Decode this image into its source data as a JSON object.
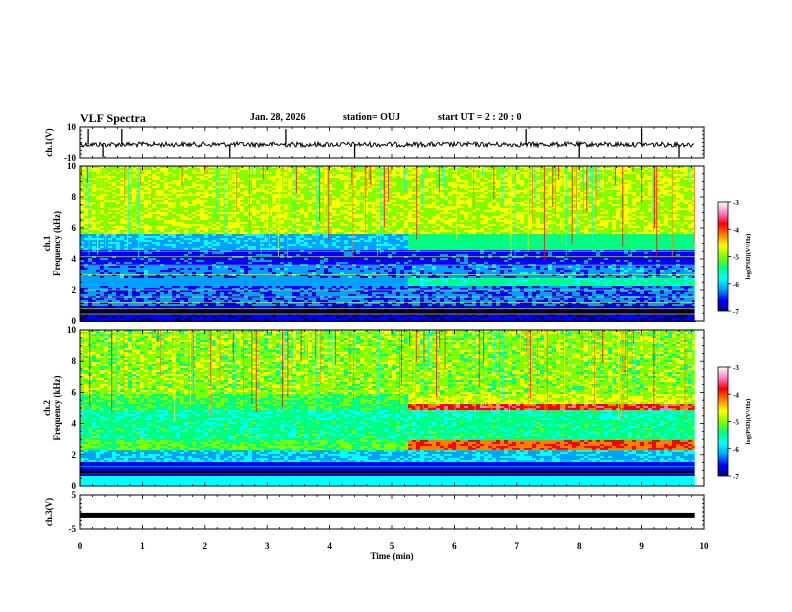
{
  "header": {
    "title": "VLF Spectra",
    "date": "Jan. 28, 2026",
    "station": "station= OUJ",
    "start": "start  UT =  2 : 20 : 0"
  },
  "chart_data": {
    "type": "heatmap",
    "x_axis": {
      "label": "Time (min)",
      "range": [
        0,
        10
      ],
      "ticks": [
        "0",
        "1",
        "2",
        "3",
        "4",
        "5",
        "6",
        "7",
        "8",
        "9",
        "10"
      ]
    },
    "panels": [
      {
        "id": "ch1-waveform",
        "type": "line",
        "ylabel": "ch.1(V)",
        "ylim": [
          -10,
          10
        ],
        "ytick_labels": [
          "10",
          "-10"
        ],
        "data_end_min": 9.85
      },
      {
        "id": "ch1-spectrogram",
        "type": "heatmap",
        "ylabel_top": "ch.1",
        "ylabel": "Frequency (kHz)",
        "ylim": [
          0,
          10
        ],
        "ytick_labels": [
          "0",
          "2",
          "4",
          "6",
          "8",
          "10"
        ],
        "data_end_min": 9.85,
        "features": [
          {
            "time_from_min": 0,
            "time_to_min": 5.2,
            "green_above_khz": 5.5,
            "dark_band_khz": [
              3.6,
              4.5
            ]
          },
          {
            "time_from_min": 5.2,
            "time_to_min": 9.85,
            "cyan_band_khz": [
              4.7,
              5.6
            ],
            "cyan_band2_khz": [
              2.4,
              2.8
            ]
          }
        ]
      },
      {
        "id": "ch2-spectrogram",
        "type": "heatmap",
        "ylabel_top": "ch.2",
        "ylabel": "Frequency (kHz)",
        "ylim": [
          0,
          10
        ],
        "ytick_labels": [
          "0",
          "2",
          "4",
          "6",
          "8",
          "10"
        ],
        "data_end_min": 9.85,
        "features": [
          {
            "time_from_min": 5.2,
            "time_to_min": 9.85,
            "red_band_khz": [
              4.9,
              5.3
            ],
            "red_band2_khz": [
              2.4,
              2.8
            ]
          }
        ]
      },
      {
        "id": "ch3-waveform",
        "type": "line",
        "ylabel": "ch.3(V)",
        "ylim": [
          -5,
          5
        ],
        "ytick_labels": [
          "5",
          "-5"
        ],
        "constant_value_v": -1,
        "data_end_min": 9.85
      }
    ],
    "colorbar": {
      "label": "log(PSD)(V²/Hz)",
      "range": [
        -7,
        -3
      ],
      "tick_labels": [
        "-3",
        "-4",
        "-5",
        "-6",
        "-7"
      ],
      "colors": [
        "#000080",
        "#0000ff",
        "#00a0ff",
        "#00ffff",
        "#00ff80",
        "#80ff00",
        "#ffff00",
        "#ff8000",
        "#ff0000",
        "#ff80c0",
        "#ffffff"
      ]
    }
  }
}
